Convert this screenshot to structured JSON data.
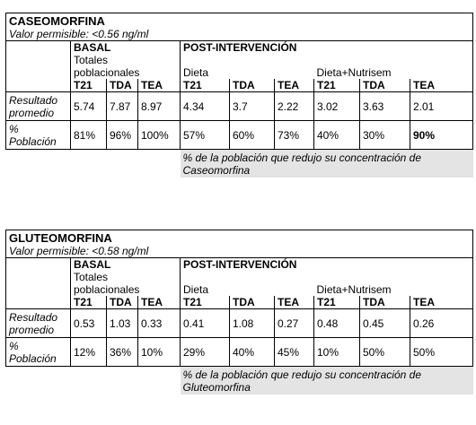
{
  "tables": [
    {
      "title": "CASEOMORFINA",
      "limit": "Valor permisible: <0.56 ng/ml",
      "basal": "BASAL",
      "post": "POST-INTERVENCIÓN",
      "totales1": "Totales",
      "totales2": "poblacionales",
      "dieta": "Dieta",
      "dieta_nutrisem": "Dieta+Nutrisem",
      "cols": [
        "T21",
        "TDA",
        "TEA",
        "T21",
        "TDA",
        "TEA",
        "T21",
        "TDA",
        "TEA"
      ],
      "row1_label": [
        "Resultado",
        "promedio"
      ],
      "row1": [
        "5.74",
        "7.87",
        "8.97",
        "4.34",
        "3.7",
        "2.22",
        "3.02",
        "3.63",
        "2.01"
      ],
      "row2_label": [
        "%",
        "Población"
      ],
      "row2": [
        "81%",
        "96%",
        "100%",
        "57%",
        "60%",
        "73%",
        "40%",
        "30%",
        "90%"
      ],
      "note1": "% de la población que redujo su concentración de",
      "note2": "Caseomorfina"
    },
    {
      "title": "GLUTEOMORFINA",
      "limit": "Valor permisible: <0.58 ng/ml",
      "basal": "BASAL",
      "post": "POST-INTERVENCIÓN",
      "totales1": "Totales",
      "totales2": "poblacionales",
      "dieta": "Dieta",
      "dieta_nutrisem": "Dieta+Nutrisem",
      "cols": [
        "T21",
        "TDA",
        "TEA",
        "T21",
        "TDA",
        "TEA",
        "T21",
        "TDA",
        "TEA"
      ],
      "row1_label": [
        "Resultado",
        "promedio"
      ],
      "row1": [
        "0.53",
        "1.03",
        "0.33",
        "0.41",
        "1.08",
        "0.27",
        "0.48",
        "0.45",
        "0.26"
      ],
      "row2_label": [
        "%",
        "Población"
      ],
      "row2": [
        "12%",
        "36%",
        "10%",
        "29%",
        "40%",
        "45%",
        "10%",
        "50%",
        "50%"
      ],
      "note1": "% de la población que redujo su concentración de",
      "note2": "Gluteomorfina"
    }
  ]
}
